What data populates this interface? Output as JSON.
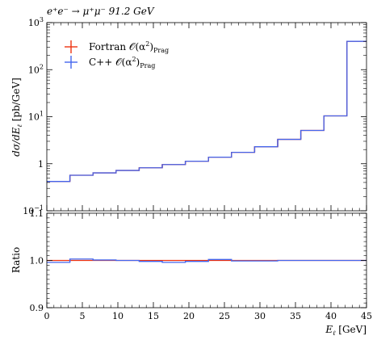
{
  "chart_data": {
    "type": "line",
    "title": "e⁺e⁻ → μ⁺μ⁻ 91.2 GeV",
    "xlabel": "E_ℓ [GeV]",
    "xlabel_text": "E",
    "xlabel_sub": "ℓ",
    "xlabel_unit": "[GeV]",
    "ylabel": "dσ/dE_ℓ [pb/GeV]",
    "ylabel_text": "dσ/dE",
    "ylabel_sub": "ℓ",
    "ylabel_unit": "[pb/GeV]",
    "ratio_ylabel": "Ratio",
    "xlim": [
      0,
      45
    ],
    "ylim": [
      0.1,
      1000
    ],
    "yscale": "log",
    "ratio_ylim": [
      0.9,
      1.1
    ],
    "xticks": [
      0,
      5,
      10,
      15,
      20,
      25,
      30,
      35,
      40,
      45
    ],
    "yticks_main": [
      {
        "value": 1000,
        "base": "10",
        "exp": "3"
      },
      {
        "value": 100,
        "base": "10",
        "exp": "2"
      },
      {
        "value": 10,
        "base": "10",
        "exp": "1"
      },
      {
        "value": 1,
        "base": "1",
        "exp": ""
      },
      {
        "value": 0.1,
        "base": "10",
        "exp": "−1"
      }
    ],
    "yticks_ratio": [
      "0.9",
      "1.0",
      "1.1"
    ],
    "legend_position": "top-left",
    "bin_edges": [
      0,
      3.25,
      6.5,
      9.75,
      13,
      16.25,
      19.5,
      22.75,
      26,
      29.25,
      32.5,
      35.75,
      39,
      42.25,
      45.5
    ],
    "series": [
      {
        "name": "Fortran 𝒪(α²)Prag",
        "label_main": "Fortran 𝒪(α",
        "label_sup": "2",
        "label_close": ")",
        "label_sub": "Prag",
        "color": "#ee3311",
        "values": [
          0.42,
          0.57,
          0.64,
          0.72,
          0.82,
          0.96,
          1.13,
          1.38,
          1.75,
          2.3,
          3.3,
          5.1,
          10.4,
          400
        ],
        "ratio": [
          1.0,
          1.0,
          1.0,
          1.0,
          1.0,
          1.0,
          1.0,
          1.0,
          1.0,
          1.0,
          1.0,
          1.0,
          1.0,
          1.0
        ]
      },
      {
        "name": "C++ 𝒪(α²)Prag",
        "label_main": "C++ 𝒪(α",
        "label_sup": "2",
        "label_close": ")",
        "label_sub": "Prag",
        "color": "#4466ee",
        "values": [
          0.42,
          0.57,
          0.64,
          0.72,
          0.82,
          0.96,
          1.13,
          1.38,
          1.75,
          2.3,
          3.3,
          5.1,
          10.4,
          400
        ],
        "ratio": [
          0.996,
          1.003,
          1.001,
          1.0,
          0.998,
          0.996,
          0.998,
          1.002,
          0.999,
          0.999,
          1.0,
          1.0,
          1.0,
          1.0
        ]
      }
    ]
  }
}
